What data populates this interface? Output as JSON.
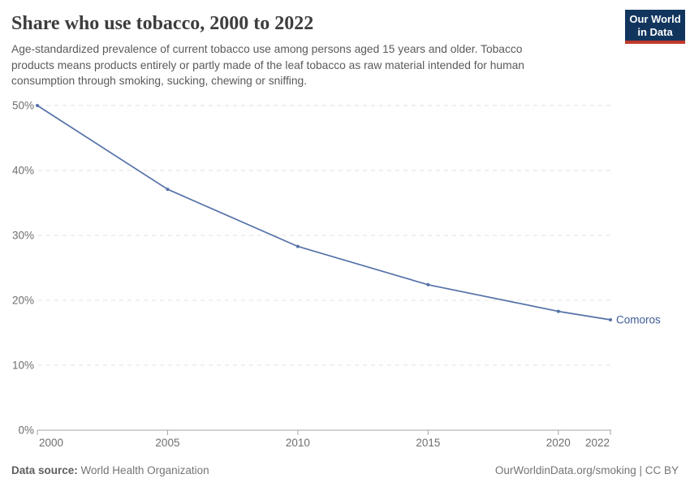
{
  "header": {
    "title": "Share who use tobacco, 2000 to 2022",
    "subtitle_lines": [
      "Age-standardized prevalence of current tobacco use among persons aged 15 years and older. Tobacco",
      "products means products entirely or partly made of the leaf tobacco as raw material intended for human",
      "consumption through smoking, sucking, chewing or sniffing."
    ],
    "logo": {
      "line1": "Our World",
      "line2": "in Data"
    }
  },
  "chart_data": {
    "type": "line",
    "title": "Share who use tobacco, 2000 to 2022",
    "x": [
      2000,
      2005,
      2010,
      2015,
      2020,
      2022
    ],
    "series": [
      {
        "name": "Comoros",
        "color": "#5471a8",
        "values": [
          50,
          37.1,
          28.3,
          22.4,
          18.3,
          17
        ]
      }
    ],
    "xlim": [
      2000,
      2022
    ],
    "ylim": [
      0,
      50
    ],
    "x_ticks": [
      2000,
      2005,
      2010,
      2015,
      2020,
      2022
    ],
    "y_ticks": [
      0,
      10,
      20,
      30,
      40,
      50
    ],
    "y_unit": "%",
    "grid": "horizontal-dashed",
    "legend_position": "end-of-line-label",
    "end_label": "Comoros"
  },
  "footer": {
    "source_label": "Data source:",
    "source_value": "World Health Organization",
    "credit": "OurWorldinData.org/smoking | CC BY"
  },
  "colors": {
    "line": "#5471a8",
    "end_label": "#3d5c96",
    "grid": "#e0e0e0",
    "axis": "#a5a5a5",
    "tick_label": "#6e6e6e",
    "title": "#3d3d3d",
    "subtitle": "#5a5a5a",
    "logo_bg": "#12355e",
    "logo_accent": "#c0392b"
  }
}
